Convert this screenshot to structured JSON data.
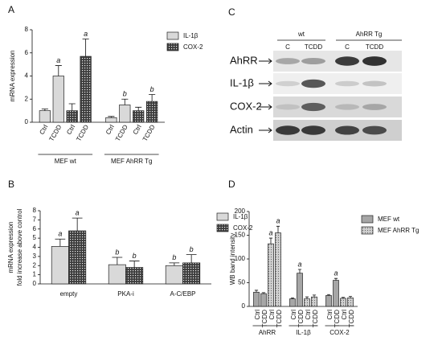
{
  "chart_data": [
    {
      "type": "bar",
      "panel": "A",
      "ylabel": "mRNA expression",
      "ylim": [
        0,
        8
      ],
      "yticks": [
        0,
        2,
        4,
        6,
        8
      ],
      "grid": false,
      "groups": [
        "MEF wt",
        "MEF AhRR Tg"
      ],
      "categories": [
        "Ctrl",
        "TCDD"
      ],
      "series": [
        {
          "name": "IL-1β",
          "color": "#d9d9d9",
          "hatch": "none",
          "values": [
            [
              1.0,
              4.0
            ],
            [
              0.4,
              1.5
            ]
          ],
          "errors": [
            [
              0.15,
              0.9
            ],
            [
              0.1,
              0.5
            ]
          ],
          "letters": [
            [
              null,
              "a"
            ],
            [
              null,
              "b"
            ]
          ]
        },
        {
          "name": "COX-2",
          "color": "#3c3c3c",
          "hatch": "checker",
          "values": [
            [
              1.0,
              5.7
            ],
            [
              1.0,
              1.8
            ]
          ],
          "errors": [
            [
              0.6,
              1.5
            ],
            [
              0.3,
              0.6
            ]
          ],
          "letters": [
            [
              null,
              "a"
            ],
            [
              null,
              "b"
            ]
          ]
        }
      ]
    },
    {
      "type": "bar",
      "panel": "B",
      "ylabel": [
        "mRNA expression",
        "fold increase above control"
      ],
      "ylim": [
        0,
        8
      ],
      "yticks": [
        0,
        1,
        2,
        3,
        4,
        5,
        6,
        7,
        8
      ],
      "grid": false,
      "categories": [
        "empty",
        "PKA-i",
        "A-C/EBP"
      ],
      "series": [
        {
          "name": "IL-1β",
          "color": "#d9d9d9",
          "hatch": "none",
          "values": [
            4.1,
            2.1,
            2.0
          ],
          "errors": [
            0.8,
            0.8,
            0.3
          ],
          "letters": [
            "a",
            "b",
            "b"
          ]
        },
        {
          "name": "COX-2",
          "color": "#3c3c3c",
          "hatch": "checker",
          "values": [
            5.8,
            1.8,
            2.3
          ],
          "errors": [
            1.4,
            0.7,
            0.9
          ],
          "letters": [
            "a",
            "b",
            "b"
          ]
        }
      ]
    },
    {
      "type": "bar",
      "panel": "D",
      "ylabel": "WB band intensity",
      "ylim": [
        0,
        200
      ],
      "yticks": [
        0,
        50,
        100,
        150,
        200
      ],
      "grid": false,
      "groups": [
        "AhRR",
        "IL-1β",
        "COX-2"
      ],
      "categories": [
        "Ctrl",
        "TCDD"
      ],
      "series": [
        {
          "name": "MEF wt",
          "color": "#a6a6a6",
          "hatch": "none",
          "values": [
            [
              30,
              27
            ],
            [
              16,
              70
            ],
            [
              23,
              55
            ]
          ],
          "errors": [
            [
              4,
              2
            ],
            [
              2,
              8
            ],
            [
              2,
              4
            ]
          ],
          "letters": [
            [
              null,
              null
            ],
            [
              null,
              "a"
            ],
            [
              null,
              "a"
            ]
          ]
        },
        {
          "name": "MEF AhRR Tg",
          "color": "#cfcfcf",
          "hatch": "dots",
          "values": [
            [
              132,
              155
            ],
            [
              16,
              20
            ],
            [
              17,
              18
            ]
          ],
          "errors": [
            [
              12,
              14
            ],
            [
              4,
              4
            ],
            [
              2,
              3
            ]
          ],
          "letters": [
            [
              "a",
              "a"
            ],
            [
              null,
              null
            ],
            [
              null,
              null
            ]
          ]
        }
      ]
    }
  ],
  "blot": {
    "panel": "C",
    "groups": [
      "wt",
      "AhRR Tg"
    ],
    "lanes": [
      "C",
      "TCDD",
      "C",
      "TCDD"
    ],
    "rows": [
      "AhRR",
      "IL-1β",
      "COX-2",
      "Actin"
    ]
  }
}
